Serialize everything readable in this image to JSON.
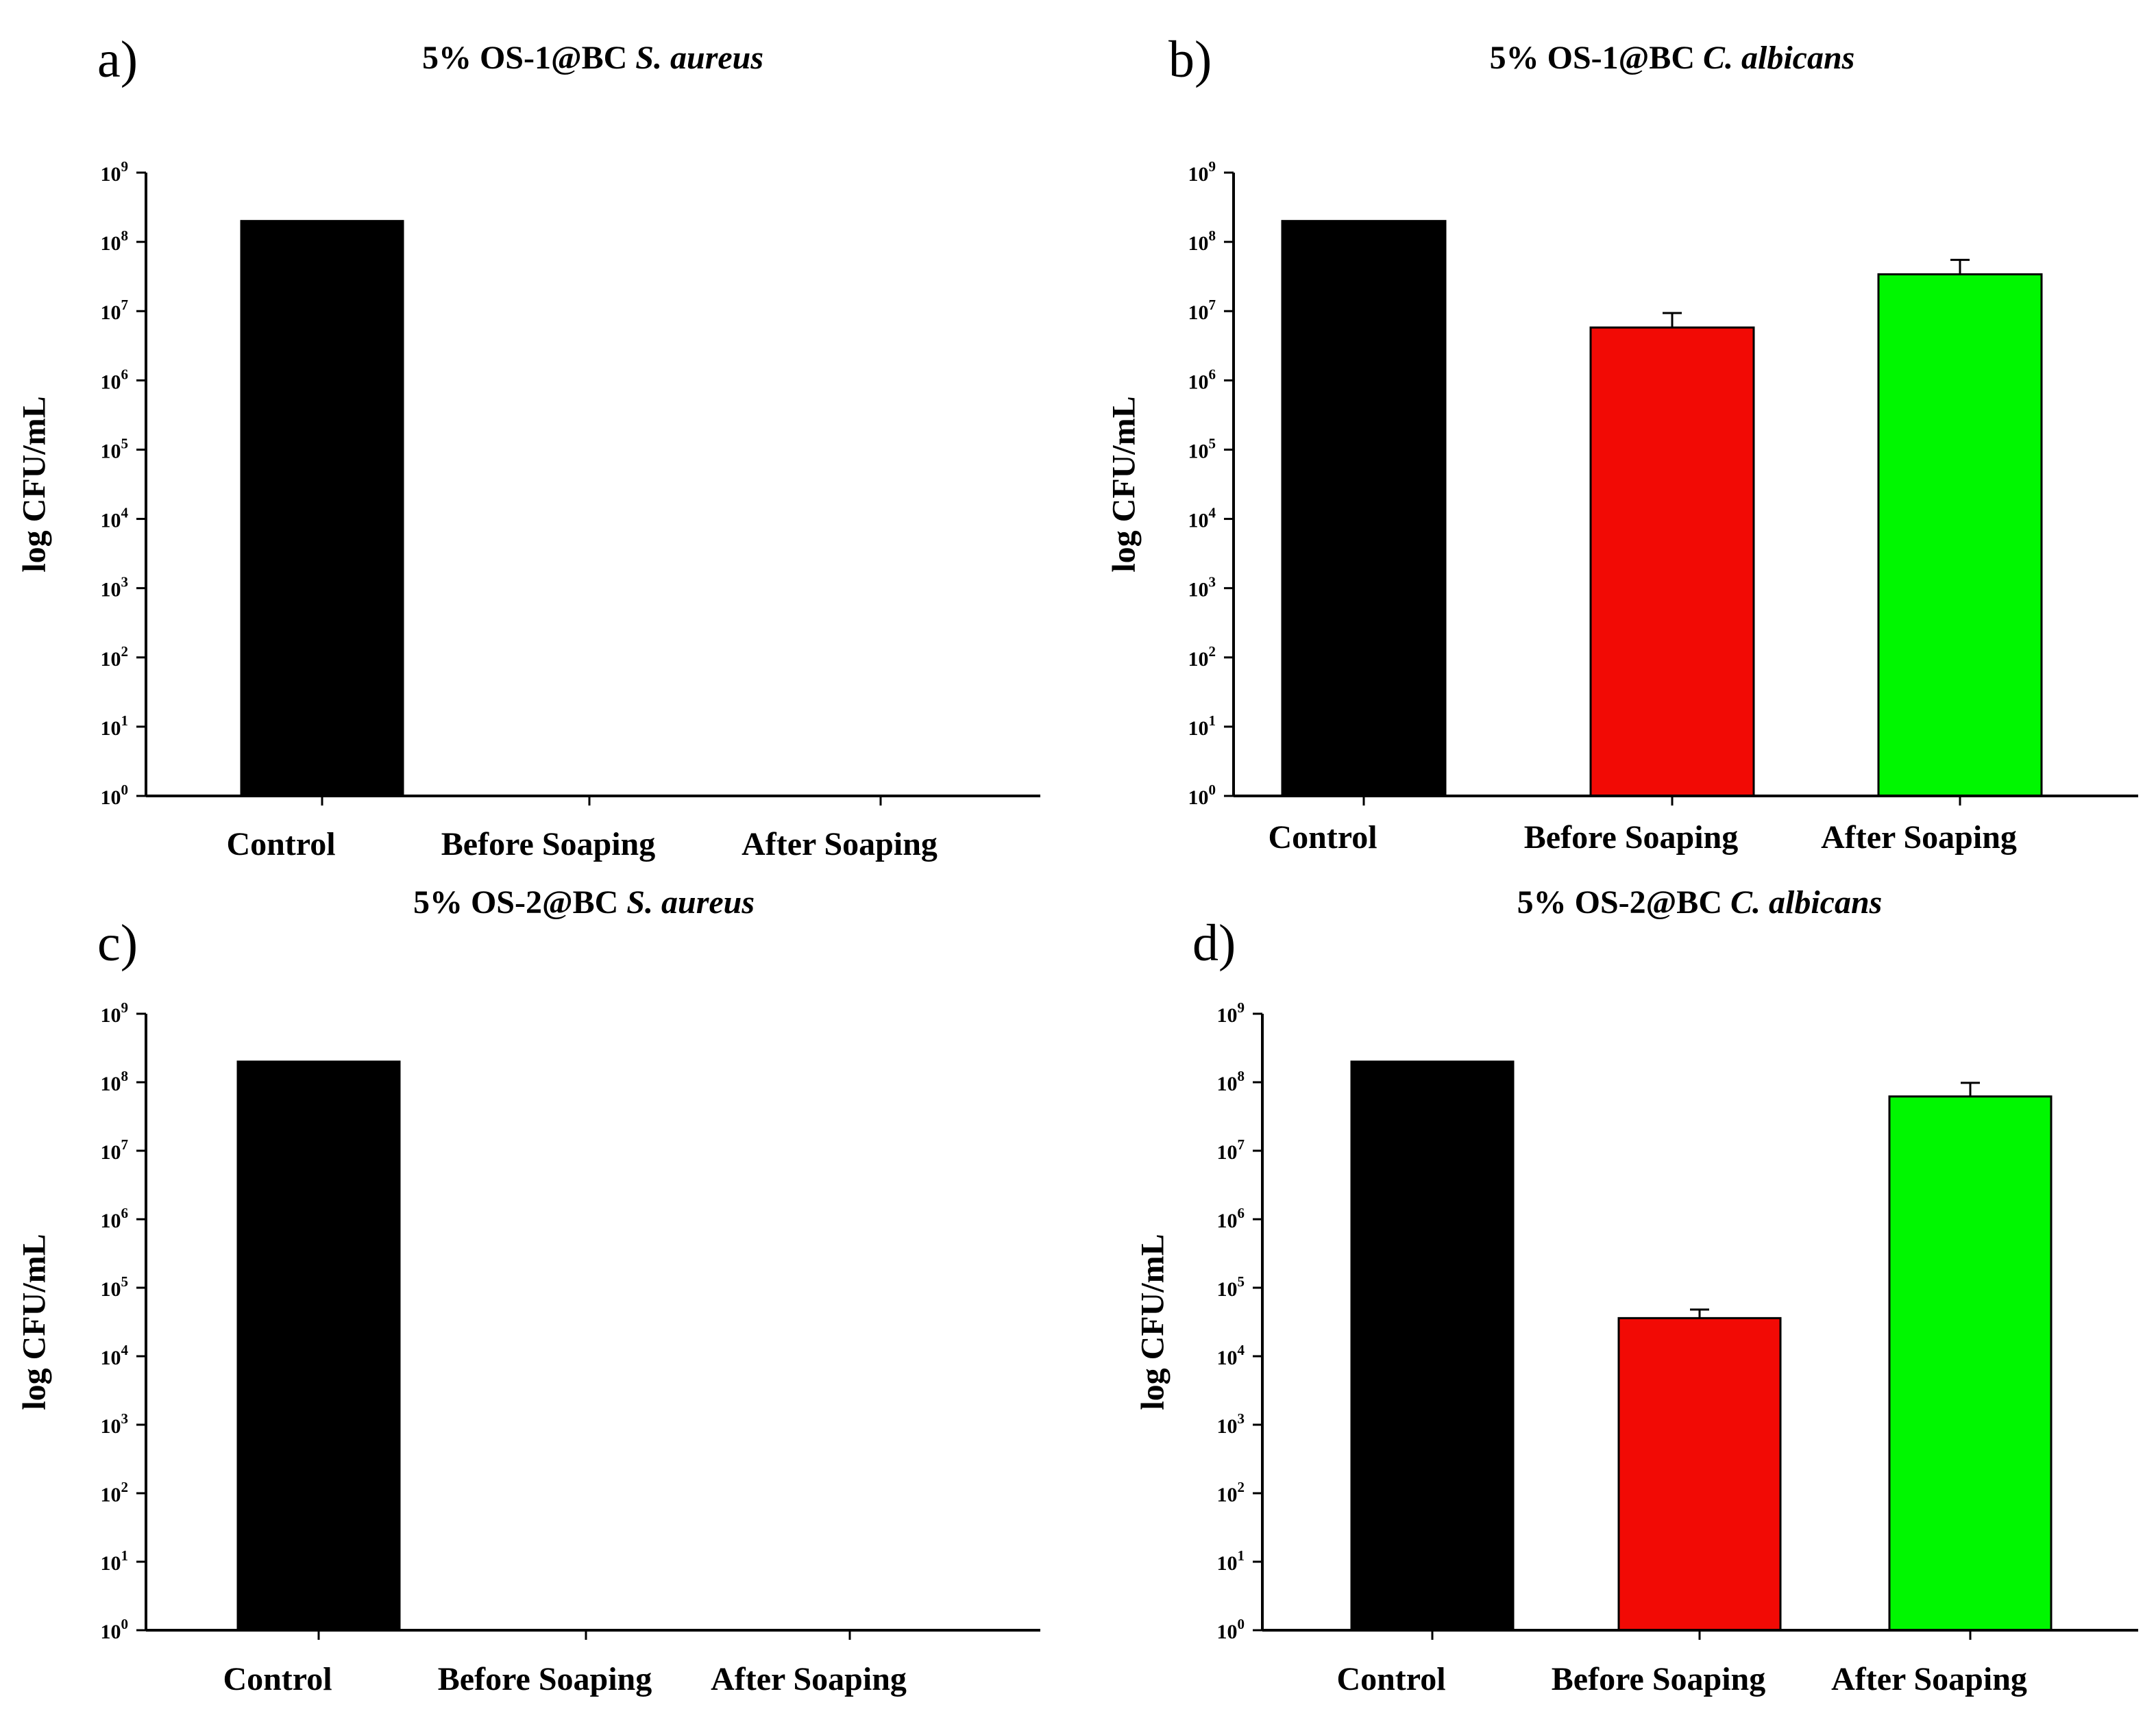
{
  "chart_data": [
    {
      "type": "bar",
      "panel": "a)",
      "title_main": "5% OS-1@BC",
      "title_species": "S. aureus",
      "ylabel": "log CFU/mL",
      "yscale": "log",
      "ylim": [
        1,
        1000000000
      ],
      "ytick_base": "10",
      "ytick_exponents": [
        "0",
        "1",
        "2",
        "3",
        "4",
        "5",
        "6",
        "7",
        "8",
        "9"
      ],
      "categories": [
        "Control",
        "Before Soaping",
        "After Soaping"
      ],
      "values": [
        200000000,
        1,
        1
      ],
      "errors": [
        0,
        0,
        0
      ],
      "colors": [
        "#000000",
        "#f20a05",
        "#00f700"
      ]
    },
    {
      "type": "bar",
      "panel": "b)",
      "title_main": "5% OS-1@BC",
      "title_species": "C. albicans",
      "ylabel": "log CFU/mL",
      "yscale": "log",
      "ylim": [
        1,
        1000000000
      ],
      "ytick_base": "10",
      "ytick_exponents": [
        "0",
        "1",
        "2",
        "3",
        "4",
        "5",
        "6",
        "7",
        "8",
        "9"
      ],
      "categories": [
        "Control",
        "Before Soaping",
        "After Soaping"
      ],
      "values": [
        200000000,
        5800000,
        34000000
      ],
      "errors": [
        0,
        3600000,
        21000000
      ],
      "colors": [
        "#000000",
        "#f20a05",
        "#00f700"
      ]
    },
    {
      "type": "bar",
      "panel": "c)",
      "title_main": "5% OS-2@BC",
      "title_species": "S. aureus",
      "ylabel": "log CFU/mL",
      "yscale": "log",
      "ylim": [
        1,
        1000000000
      ],
      "ytick_base": "10",
      "ytick_exponents": [
        "0",
        "1",
        "2",
        "3",
        "4",
        "5",
        "6",
        "7",
        "8",
        "9"
      ],
      "categories": [
        "Control",
        "Before Soaping",
        "After Soaping"
      ],
      "values": [
        200000000,
        1,
        1
      ],
      "errors": [
        0,
        0,
        0
      ],
      "colors": [
        "#000000",
        "#f20a05",
        "#00f700"
      ]
    },
    {
      "type": "bar",
      "panel": "d)",
      "title_main": "5% OS-2@BC",
      "title_species": "C. albicans",
      "ylabel": "log CFU/mL",
      "yscale": "log",
      "ylim": [
        1,
        1000000000
      ],
      "ytick_base": "10",
      "ytick_exponents": [
        "0",
        "1",
        "2",
        "3",
        "4",
        "5",
        "6",
        "7",
        "8",
        "9"
      ],
      "categories": [
        "Control",
        "Before Soaping",
        "After Soaping"
      ],
      "values": [
        200000000,
        36000,
        62000000
      ],
      "errors": [
        0,
        12000,
        36000000
      ],
      "colors": [
        "#000000",
        "#f20a05",
        "#00f700"
      ]
    }
  ]
}
